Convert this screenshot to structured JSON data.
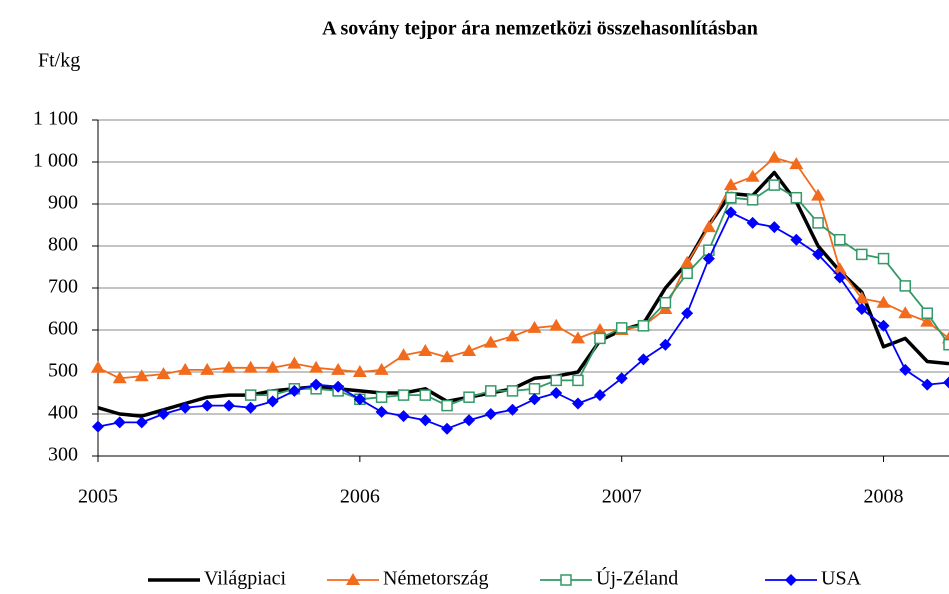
{
  "chart_data": {
    "type": "line",
    "title": "A sovány tejpor ára nemzetközi összehasonlításban",
    "y_label": "Ft/kg",
    "x": [
      2005,
      2005.083,
      2005.167,
      2005.25,
      2005.333,
      2005.417,
      2005.5,
      2005.583,
      2005.667,
      2005.75,
      2005.833,
      2005.917,
      2006,
      2006.083,
      2006.167,
      2006.25,
      2006.333,
      2006.417,
      2006.5,
      2006.583,
      2006.667,
      2006.75,
      2006.833,
      2006.917,
      2007,
      2007.083,
      2007.167,
      2007.25,
      2007.333,
      2007.417,
      2007.5,
      2007.583,
      2007.667,
      2007.75,
      2007.833,
      2007.917,
      2008,
      2008.083,
      2008.167,
      2008.25
    ],
    "xlim": [
      2005,
      2008.25
    ],
    "xticks": [
      2005,
      2006,
      2007,
      2008
    ],
    "ylim": [
      300,
      1100
    ],
    "yticks": [
      300,
      400,
      500,
      600,
      700,
      800,
      900,
      {
        "value": 1000,
        "label": "1 000"
      },
      {
        "value": 1100,
        "label": "1 100"
      }
    ],
    "grid": true,
    "legend": "bottom",
    "series": [
      {
        "name": "Világpiaci",
        "color": "#000000",
        "marker": "none",
        "values": [
          415,
          400,
          395,
          410,
          425,
          440,
          445,
          445,
          455,
          460,
          465,
          460,
          455,
          450,
          450,
          460,
          430,
          440,
          450,
          460,
          485,
          490,
          500,
          575,
          600,
          615,
          700,
          760,
          850,
          925,
          920,
          975,
          905,
          800,
          740,
          690,
          560,
          580,
          525,
          520
        ]
      },
      {
        "name": "Németország",
        "color": "#f26b1d",
        "marker": "triangle",
        "values": [
          510,
          485,
          490,
          495,
          505,
          505,
          510,
          510,
          510,
          520,
          510,
          505,
          500,
          505,
          540,
          550,
          535,
          550,
          570,
          585,
          605,
          610,
          580,
          600,
          600,
          610,
          650,
          760,
          845,
          945,
          965,
          1010,
          995,
          920,
          745,
          675,
          665,
          640,
          620,
          580
        ]
      },
      {
        "name": "Új-Zéland",
        "color": "#339966",
        "marker": "square",
        "values": [
          null,
          null,
          null,
          null,
          null,
          null,
          null,
          445,
          445,
          460,
          460,
          455,
          435,
          440,
          445,
          445,
          420,
          440,
          455,
          455,
          460,
          480,
          480,
          580,
          605,
          610,
          665,
          735,
          790,
          915,
          910,
          945,
          915,
          855,
          815,
          780,
          770,
          705,
          640,
          565
        ]
      },
      {
        "name": "USA",
        "color": "#0000ff",
        "marker": "diamond",
        "values": [
          370,
          380,
          380,
          400,
          415,
          420,
          420,
          415,
          430,
          455,
          470,
          465,
          435,
          405,
          395,
          385,
          365,
          385,
          400,
          410,
          435,
          450,
          425,
          445,
          485,
          530,
          565,
          640,
          770,
          880,
          855,
          845,
          815,
          780,
          725,
          650,
          610,
          505,
          470,
          475
        ]
      }
    ]
  }
}
